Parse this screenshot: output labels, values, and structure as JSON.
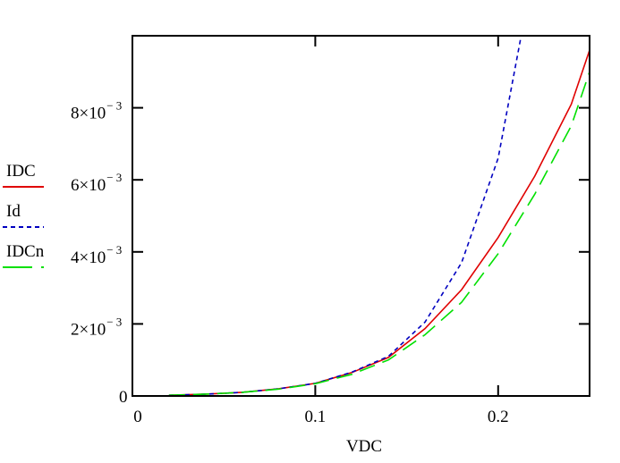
{
  "chart_data": {
    "type": "line",
    "title": "",
    "xlabel": "VDC",
    "ylabel": "",
    "xlim": [
      0,
      0.25
    ],
    "ylim": [
      0,
      0.01
    ],
    "grid": false,
    "legend": "left",
    "x_ticks": [
      {
        "value": 0,
        "label": "0"
      },
      {
        "value": 0.1,
        "label": "0.1"
      },
      {
        "value": 0.2,
        "label": "0.2"
      }
    ],
    "y_ticks": [
      {
        "value": 0,
        "mantissa": "0",
        "exponent": ""
      },
      {
        "value": 0.002,
        "mantissa": "2×10",
        "exponent": "− 3"
      },
      {
        "value": 0.004,
        "mantissa": "4×10",
        "exponent": "− 3"
      },
      {
        "value": 0.006,
        "mantissa": "6×10",
        "exponent": "− 3"
      },
      {
        "value": 0.008,
        "mantissa": "8×10",
        "exponent": "− 3"
      }
    ],
    "series": [
      {
        "name": "IDC",
        "color": "#e00000",
        "dash": "",
        "x": [
          0.02,
          0.04,
          0.06,
          0.08,
          0.1,
          0.12,
          0.14,
          0.16,
          0.18,
          0.2,
          0.22,
          0.24,
          0.25
        ],
        "y": [
          2e-05,
          5e-05,
          0.0001,
          0.0002,
          0.00035,
          0.00065,
          0.00107,
          0.00187,
          0.00295,
          0.0044,
          0.0061,
          0.0081,
          0.0096
        ]
      },
      {
        "name": "Id",
        "color": "#0000c0",
        "dash": "5,4",
        "x": [
          0.02,
          0.04,
          0.06,
          0.08,
          0.1,
          0.12,
          0.14,
          0.16,
          0.18,
          0.2,
          0.22
        ],
        "y": [
          2e-05,
          5e-05,
          0.0001,
          0.0002,
          0.00035,
          0.00066,
          0.0011,
          0.00205,
          0.0037,
          0.0066,
          0.012
        ]
      },
      {
        "name": "IDCn",
        "color": "#00e000",
        "dash": "18,9",
        "x": [
          0.02,
          0.04,
          0.06,
          0.08,
          0.1,
          0.12,
          0.14,
          0.16,
          0.18,
          0.2,
          0.22,
          0.24,
          0.25
        ],
        "y": [
          2e-05,
          5e-05,
          0.0001,
          0.00019,
          0.00034,
          0.0006,
          0.001,
          0.0017,
          0.0026,
          0.00395,
          0.0056,
          0.0075,
          0.009
        ]
      }
    ]
  }
}
